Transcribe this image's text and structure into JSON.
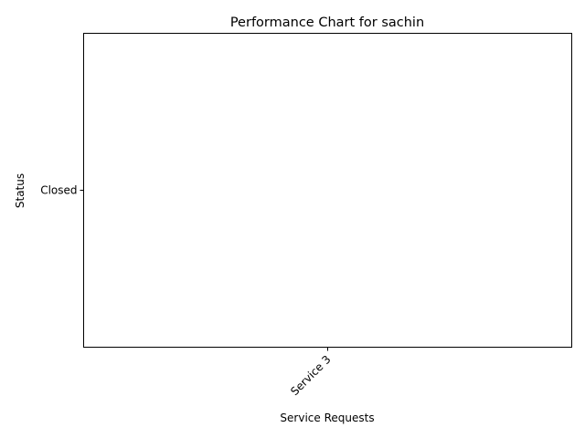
{
  "chart_data": {
    "type": "scatter",
    "title": "Performance Chart for sachin",
    "xlabel": "Service Requests",
    "ylabel": "Status",
    "categories": [
      "Service 3"
    ],
    "y_categories": [
      "Closed"
    ],
    "series": [
      {
        "points": [
          {
            "x": "Service 3",
            "y": "Closed"
          }
        ]
      }
    ],
    "x_tick_rotation_deg": 45,
    "grid": false,
    "legend": "none",
    "colors": {
      "axes": "#000000",
      "background": "#ffffff",
      "marker": "#1f77b4"
    }
  }
}
